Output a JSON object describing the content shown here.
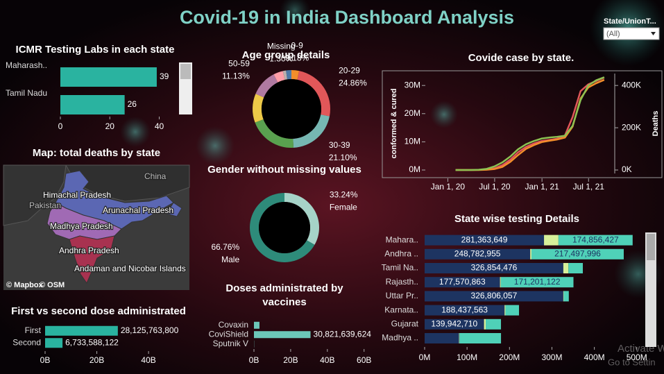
{
  "title": "Covid-19 in India Dashboard Analysis",
  "filter": {
    "label": "State/UnionT...",
    "value": "(All)"
  },
  "map": {
    "title": "Map: total deaths by state",
    "labels": [
      "China",
      "Pakistan",
      "Himachal Pradesh",
      "Arunachal Pradesh",
      "Madhya Pradesh",
      "Andhra Pradesh",
      "Andaman and Nicobar Islands"
    ],
    "credits": [
      "© Mapbox",
      "© OSM"
    ]
  },
  "watermark": [
    "Activate W",
    "Go to Settin"
  ],
  "chart_data": [
    {
      "type": "bar",
      "title": "ICMR Testing Labs in each state",
      "categories": [
        "Maharash..",
        "Tamil Nadu"
      ],
      "values": [
        39,
        26
      ],
      "color": "#2ab3a0",
      "xlim": [
        0,
        48
      ],
      "xticks": [
        0,
        20,
        40
      ]
    },
    {
      "type": "pie",
      "title": "Age group details",
      "donut": true,
      "categories": [
        "0-9",
        "20-29",
        "30-39",
        null,
        null,
        "50-59",
        null,
        "Missing",
        null
      ],
      "values": [
        3.18,
        24.86,
        21.1,
        20.2,
        12,
        11.13,
        4,
        1.3,
        2.23
      ],
      "value_labels": [
        "3.18%",
        "24.86%",
        "21.10%",
        null,
        null,
        "11.13%",
        null,
        "1.30%",
        null
      ],
      "colors": [
        "#f28e2b",
        "#e15759",
        "#76b7b2",
        "#59a14f",
        "#edc948",
        "#b07aa1",
        "#ff9da7",
        "#bab0ac",
        "#4e79a7"
      ]
    },
    {
      "type": "pie",
      "title": "Gender without missing values",
      "donut": true,
      "categories": [
        "Female",
        "Male"
      ],
      "values": [
        33.24,
        66.76
      ],
      "value_labels": [
        "33.24%",
        "66.76%"
      ],
      "colors": [
        "#a6d3c8",
        "#2e8b7a"
      ]
    },
    {
      "type": "line",
      "title": "Covide case by state.",
      "ylabel": "conformed & cured",
      "y2label": "Deaths",
      "x": [
        "2020-01-31",
        "2020-02-29",
        "2020-03-31",
        "2020-04-30",
        "2020-05-31",
        "2020-06-30",
        "2020-07-31",
        "2020-08-31",
        "2020-09-30",
        "2020-10-31",
        "2020-11-30",
        "2020-12-31",
        "2021-01-31",
        "2021-02-28",
        "2021-03-31",
        "2021-04-30",
        "2021-05-31",
        "2021-06-30",
        "2021-07-31",
        "2021-08-31"
      ],
      "xlim": [
        "2019-11-15",
        "2021-09-30"
      ],
      "xticks": [
        {
          "value": "2020-01-01",
          "label": "Jan 1, 20"
        },
        {
          "value": "2020-07-01",
          "label": "Jul 1, 20"
        },
        {
          "value": "2021-01-01",
          "label": "Jan 1, 21"
        },
        {
          "value": "2021-07-01",
          "label": "Jul 1, 21"
        }
      ],
      "ylim": [
        0,
        33000000
      ],
      "yticks": [
        {
          "value": 0,
          "label": "0M"
        },
        {
          "value": 10000000,
          "label": "10M"
        },
        {
          "value": 20000000,
          "label": "20M"
        },
        {
          "value": 30000000,
          "label": "30M"
        }
      ],
      "y2lim": [
        0,
        440000
      ],
      "y2ticks": [
        {
          "value": 0,
          "label": "0K"
        },
        {
          "value": 200000,
          "label": "200K"
        },
        {
          "value": 400000,
          "label": "400K"
        }
      ],
      "series": [
        {
          "color": "#e15759",
          "values": [
            1,
            3,
            1400,
            33000,
            190000,
            585000,
            1700000,
            3700000,
            6300000,
            8200000,
            9400000,
            10300000,
            10700000,
            11100000,
            12200000,
            18800000,
            28000000,
            30400000,
            31600000,
            32800000
          ]
        },
        {
          "color": "#f28e2b",
          "values": [
            0,
            3,
            120,
            8000,
            90000,
            350000,
            1100000,
            2900000,
            5300000,
            7500000,
            8800000,
            9900000,
            10400000,
            10800000,
            11500000,
            15400000,
            25400000,
            29300000,
            30800000,
            32000000
          ]
        },
        {
          "color": "#8cc152",
          "axis": "y2",
          "values": [
            0,
            0,
            35,
            1100,
            5400,
            17000,
            36000,
            64000,
            98000,
            122000,
            137000,
            149000,
            154000,
            157000,
            162000,
            209000,
            331000,
            400000,
            425000,
            439000
          ]
        }
      ]
    },
    {
      "type": "stacked-bar",
      "title": "State wise testing Details",
      "categories": [
        "Mahara..",
        "Andhra ..",
        "Tamil Na..",
        "Rajasth..",
        "Uttar Pr..",
        "Karnata..",
        "Gujarat",
        "Madhya .."
      ],
      "xlim": [
        0,
        520000000
      ],
      "xticks": [
        {
          "value": 0,
          "label": "0M"
        },
        {
          "value": 100000000,
          "label": "100M"
        },
        {
          "value": 200000000,
          "label": "200M"
        },
        {
          "value": 300000000,
          "label": "300M"
        },
        {
          "value": 400000000,
          "label": "400M"
        },
        {
          "value": 500000000,
          "label": "500M"
        }
      ],
      "series": [
        {
          "color": "#1d3461",
          "values": [
            281363649,
            248782955,
            326854476,
            177570863,
            326806057,
            188437563,
            139942710,
            81000000
          ],
          "value_labels": [
            "281,363,649",
            "248,782,955",
            "326,854,476",
            "177,570,863",
            "326,806,057",
            "188,437,563",
            "139,942,710",
            null
          ]
        },
        {
          "color": "#d7f09a",
          "values": [
            34000000,
            3000000,
            12000000,
            2000000,
            1000000,
            2000000,
            4000000,
            1000000
          ]
        },
        {
          "color": "#4fd1b8",
          "values": [
            174856427,
            217497996,
            34000000,
            171201122,
            12000000,
            32000000,
            36000000,
            98000000
          ],
          "value_labels": [
            "174,856,427",
            "217,497,996",
            null,
            "171,201,122",
            null,
            null,
            null,
            null
          ]
        }
      ]
    },
    {
      "type": "bar",
      "title": "First vs second dose administrated",
      "categories": [
        "First",
        "Second"
      ],
      "values": [
        28125763800,
        6733588122
      ],
      "value_labels": [
        "28,125,763,800",
        "6,733,588,122"
      ],
      "color": "#2ab3a0",
      "xlim": [
        0,
        55000000000
      ],
      "xticks": [
        {
          "value": 0,
          "label": "0B"
        },
        {
          "value": 20000000000,
          "label": "20B"
        },
        {
          "value": 40000000000,
          "label": "40B"
        }
      ]
    },
    {
      "type": "bar",
      "title": "Doses administrated by vaccines",
      "categories": [
        "Covaxin",
        "CoviShield",
        "Sputnik V"
      ],
      "values": [
        3000000000,
        30821639624,
        100000000
      ],
      "value_labels": [
        null,
        "30,821,639,624",
        null
      ],
      "color": "#6cc7b8",
      "xlim": [
        0,
        62000000000
      ],
      "xticks": [
        {
          "value": 0,
          "label": "0B"
        },
        {
          "value": 20000000000,
          "label": "20B"
        },
        {
          "value": 40000000000,
          "label": "40B"
        },
        {
          "value": 60000000000,
          "label": "60B"
        }
      ]
    }
  ]
}
